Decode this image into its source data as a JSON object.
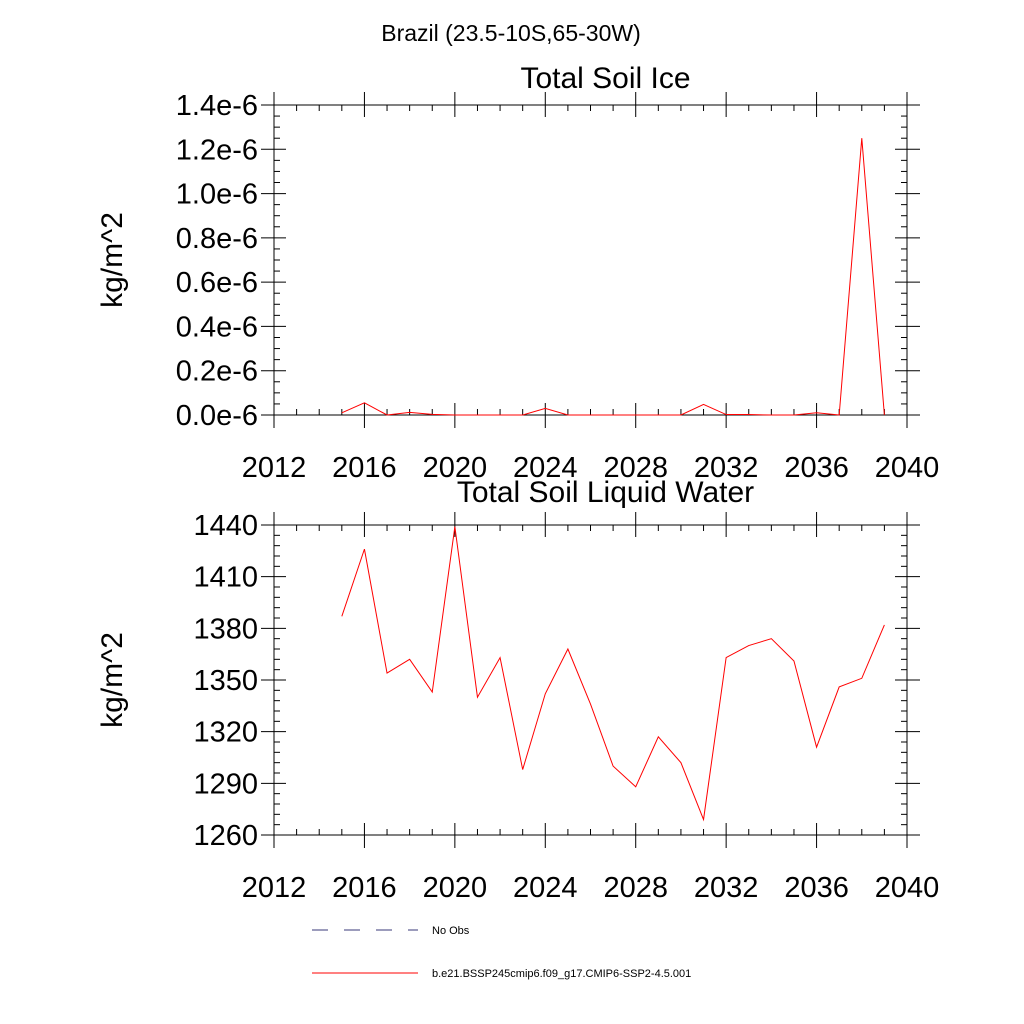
{
  "figure": {
    "supertitle": "Brazil (23.5-10S,65-30W)"
  },
  "legend": {
    "placement": "bottom-center",
    "entries": [
      {
        "label": "No Obs",
        "color": "#3a3a7a",
        "style": "dashed"
      },
      {
        "label": "b.e21.BSSP245cmip6.f09_g17.CMIP6-SSP2-4.5.001",
        "color": "#ff0000",
        "style": "solid"
      }
    ]
  },
  "chart_data": [
    {
      "type": "line",
      "title": "Total Soil Ice",
      "xlabel": "",
      "ylabel": "kg/m^2",
      "xlim": [
        2012,
        2040
      ],
      "ylim": [
        0,
        1.4e-06
      ],
      "x_ticks": [
        "2012",
        "2016",
        "2020",
        "2024",
        "2028",
        "2032",
        "2036",
        "2040"
      ],
      "y_ticks": [
        "0.0e-6",
        "0.2e-6",
        "0.4e-6",
        "0.6e-6",
        "0.8e-6",
        "1.0e-6",
        "1.2e-6",
        "1.4e-6"
      ],
      "grid": false,
      "series": [
        {
          "color": "#ff0000",
          "x": [
            2015,
            2016,
            2017,
            2018,
            2019,
            2020,
            2021,
            2022,
            2023,
            2024,
            2025,
            2026,
            2027,
            2028,
            2029,
            2030,
            2031,
            2032,
            2033,
            2034,
            2035,
            2036,
            2037,
            2038,
            2039
          ],
          "y": [
            1e-08,
            5.5e-08,
            0.0,
            1.2e-08,
            3e-09,
            0.0,
            0.0,
            0.0,
            0.0,
            3e-08,
            0.0,
            0.0,
            0.0,
            0.0,
            0.0,
            0.0,
            4.8e-08,
            2e-09,
            2e-09,
            0.0,
            0.0,
            1e-08,
            0.0,
            1.25e-06,
            0.0
          ]
        }
      ]
    },
    {
      "type": "line",
      "title": "Total Soil Liquid Water",
      "xlabel": "",
      "ylabel": "kg/m^2",
      "xlim": [
        2012,
        2040
      ],
      "ylim": [
        1260,
        1440
      ],
      "x_ticks": [
        "2012",
        "2016",
        "2020",
        "2024",
        "2028",
        "2032",
        "2036",
        "2040"
      ],
      "y_ticks": [
        "1260",
        "1290",
        "1320",
        "1350",
        "1380",
        "1410",
        "1440"
      ],
      "grid": false,
      "series": [
        {
          "color": "#ff0000",
          "x": [
            2015,
            2016,
            2017,
            2018,
            2019,
            2020,
            2021,
            2022,
            2023,
            2024,
            2025,
            2026,
            2027,
            2028,
            2029,
            2030,
            2031,
            2032,
            2033,
            2034,
            2035,
            2036,
            2037,
            2038,
            2039
          ],
          "y": [
            1387,
            1426,
            1354,
            1362,
            1343,
            1439,
            1340,
            1363,
            1298,
            1342,
            1368,
            1336,
            1300,
            1288,
            1317,
            1302,
            1269,
            1363,
            1370,
            1374,
            1361,
            1311,
            1346,
            1351,
            1382
          ]
        }
      ]
    }
  ]
}
